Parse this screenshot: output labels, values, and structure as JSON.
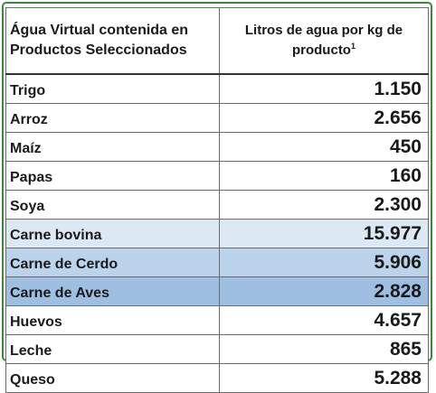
{
  "table": {
    "header": {
      "col1_line1": "Água Virtual contenida en",
      "col1_line2": "Productos Seleccionados",
      "col2_line1": "Litros de agua por kg de",
      "col2_line2": "producto",
      "col2_footnote": "1"
    },
    "rows": [
      {
        "product": "Trigo",
        "liters": "1.150",
        "bg": "#ffffff"
      },
      {
        "product": "Arroz",
        "liters": "2.656",
        "bg": "#ffffff"
      },
      {
        "product": "Maíz",
        "liters": "450",
        "bg": "#ffffff"
      },
      {
        "product": "Papas",
        "liters": "160",
        "bg": "#ffffff"
      },
      {
        "product": "Soya",
        "liters": "2.300",
        "bg": "#ffffff"
      },
      {
        "product": "Carne bovina",
        "liters": "15.977",
        "bg": "#dce8f4"
      },
      {
        "product": "Carne de Cerdo",
        "liters": "5.906",
        "bg": "#bcd3ec"
      },
      {
        "product": "Carne de Aves",
        "liters": "2.828",
        "bg": "#9fbfe2"
      },
      {
        "product": "Huevos",
        "liters": "4.657",
        "bg": "#ffffff"
      },
      {
        "product": "Leche",
        "liters": "865",
        "bg": "#ffffff"
      },
      {
        "product": "Queso",
        "liters": "5.288",
        "bg": "#ffffff"
      }
    ]
  },
  "colors": {
    "frame_border": "#3a8a3a",
    "cell_border": "#6b6b6b",
    "text": "#1a1a1a"
  }
}
